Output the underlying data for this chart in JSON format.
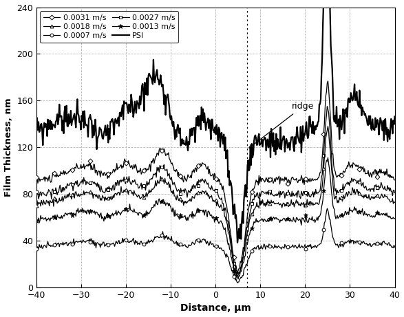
{
  "title": "",
  "xlabel": "Distance, μm",
  "ylabel": "Film Thickness, nm",
  "xlim": [
    -40,
    40
  ],
  "ylim": [
    0,
    240
  ],
  "xticks": [
    -40,
    -30,
    -20,
    -10,
    0,
    10,
    20,
    30,
    40
  ],
  "yticks": [
    0,
    40,
    80,
    120,
    160,
    200,
    240
  ],
  "grid_color": "#b0b0b0",
  "background_color": "#ffffff",
  "legend_order": [
    0,
    2,
    4,
    1,
    3,
    5
  ],
  "series": [
    {
      "label": "0.0031 m/s",
      "marker": "D",
      "base": 92,
      "noise": 1.8,
      "seed": 10
    },
    {
      "label": "0.0027 m/s",
      "marker": "s",
      "base": 80,
      "noise": 1.8,
      "seed": 20
    },
    {
      "label": "0.0018 m/s",
      "marker": "^",
      "base": 72,
      "noise": 1.5,
      "seed": 30
    },
    {
      "label": "0.0013 m/s",
      "marker": "*",
      "base": 58,
      "noise": 1.5,
      "seed": 40
    },
    {
      "label": "0.0007 m/s",
      "marker": "o",
      "base": 35,
      "noise": 1.2,
      "seed": 50
    },
    {
      "label": "PSI",
      "marker": "",
      "base": 130,
      "noise": 5.0,
      "seed": 99
    }
  ]
}
